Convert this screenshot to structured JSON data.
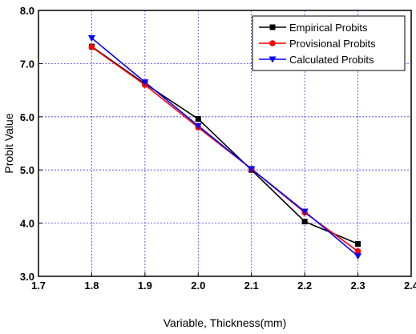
{
  "chart_data": {
    "type": "line",
    "xlabel": "Variable, Thickness(mm)",
    "ylabel": "Probit Value",
    "xlim": [
      1.7,
      2.4
    ],
    "ylim": [
      3.0,
      8.0
    ],
    "x_ticks": [
      "1.7",
      "1.8",
      "1.9",
      "2.0",
      "2.1",
      "2.2",
      "2.3",
      "2.4"
    ],
    "y_ticks": [
      "3.0",
      "4.0",
      "5.0",
      "6.0",
      "7.0",
      "8.0"
    ],
    "grid": true,
    "legend_position": "top-right",
    "x": [
      1.8,
      1.9,
      2.0,
      2.1,
      2.2,
      2.3
    ],
    "series": [
      {
        "name": "Empirical Probits",
        "color": "#000000",
        "marker": "square",
        "values": [
          7.32,
          6.62,
          5.96,
          5.0,
          4.03,
          3.61
        ]
      },
      {
        "name": "Provisional Probits",
        "color": "#ff0000",
        "marker": "circle",
        "values": [
          7.31,
          6.6,
          5.8,
          5.02,
          4.2,
          3.47
        ]
      },
      {
        "name": "Calculated Probits",
        "color": "#0000ff",
        "marker": "triangle-down",
        "values": [
          7.48,
          6.65,
          5.83,
          5.02,
          4.22,
          3.38
        ]
      }
    ]
  }
}
